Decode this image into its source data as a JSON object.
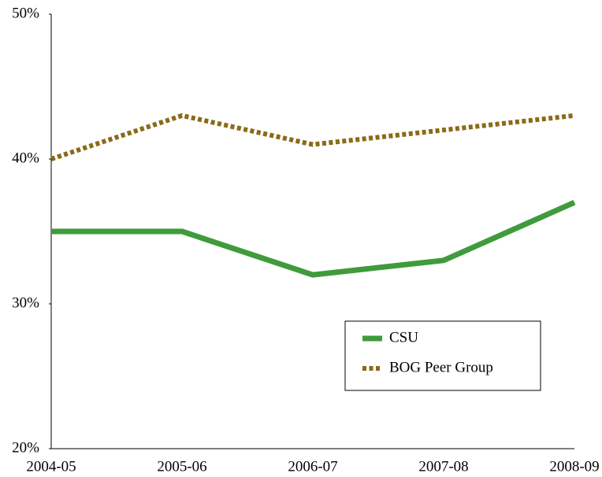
{
  "chart_data": {
    "type": "line",
    "categories": [
      "2004-05",
      "2005-06",
      "2006-07",
      "2007-08",
      "2008-09"
    ],
    "series": [
      {
        "name": "CSU",
        "color": "#3f9b3c",
        "values": [
          35,
          35,
          32,
          33,
          37
        ]
      },
      {
        "name": "BOG Peer Group",
        "color": "#8b6a17",
        "dashed": true,
        "values": [
          40,
          43,
          41,
          42,
          43
        ]
      }
    ],
    "ylim": [
      20,
      50
    ],
    "yticks": [
      {
        "value": 20,
        "label": "20%"
      },
      {
        "value": 30,
        "label": "30%"
      },
      {
        "value": 40,
        "label": "40%"
      },
      {
        "value": 50,
        "label": "50%"
      }
    ],
    "grid": false
  }
}
